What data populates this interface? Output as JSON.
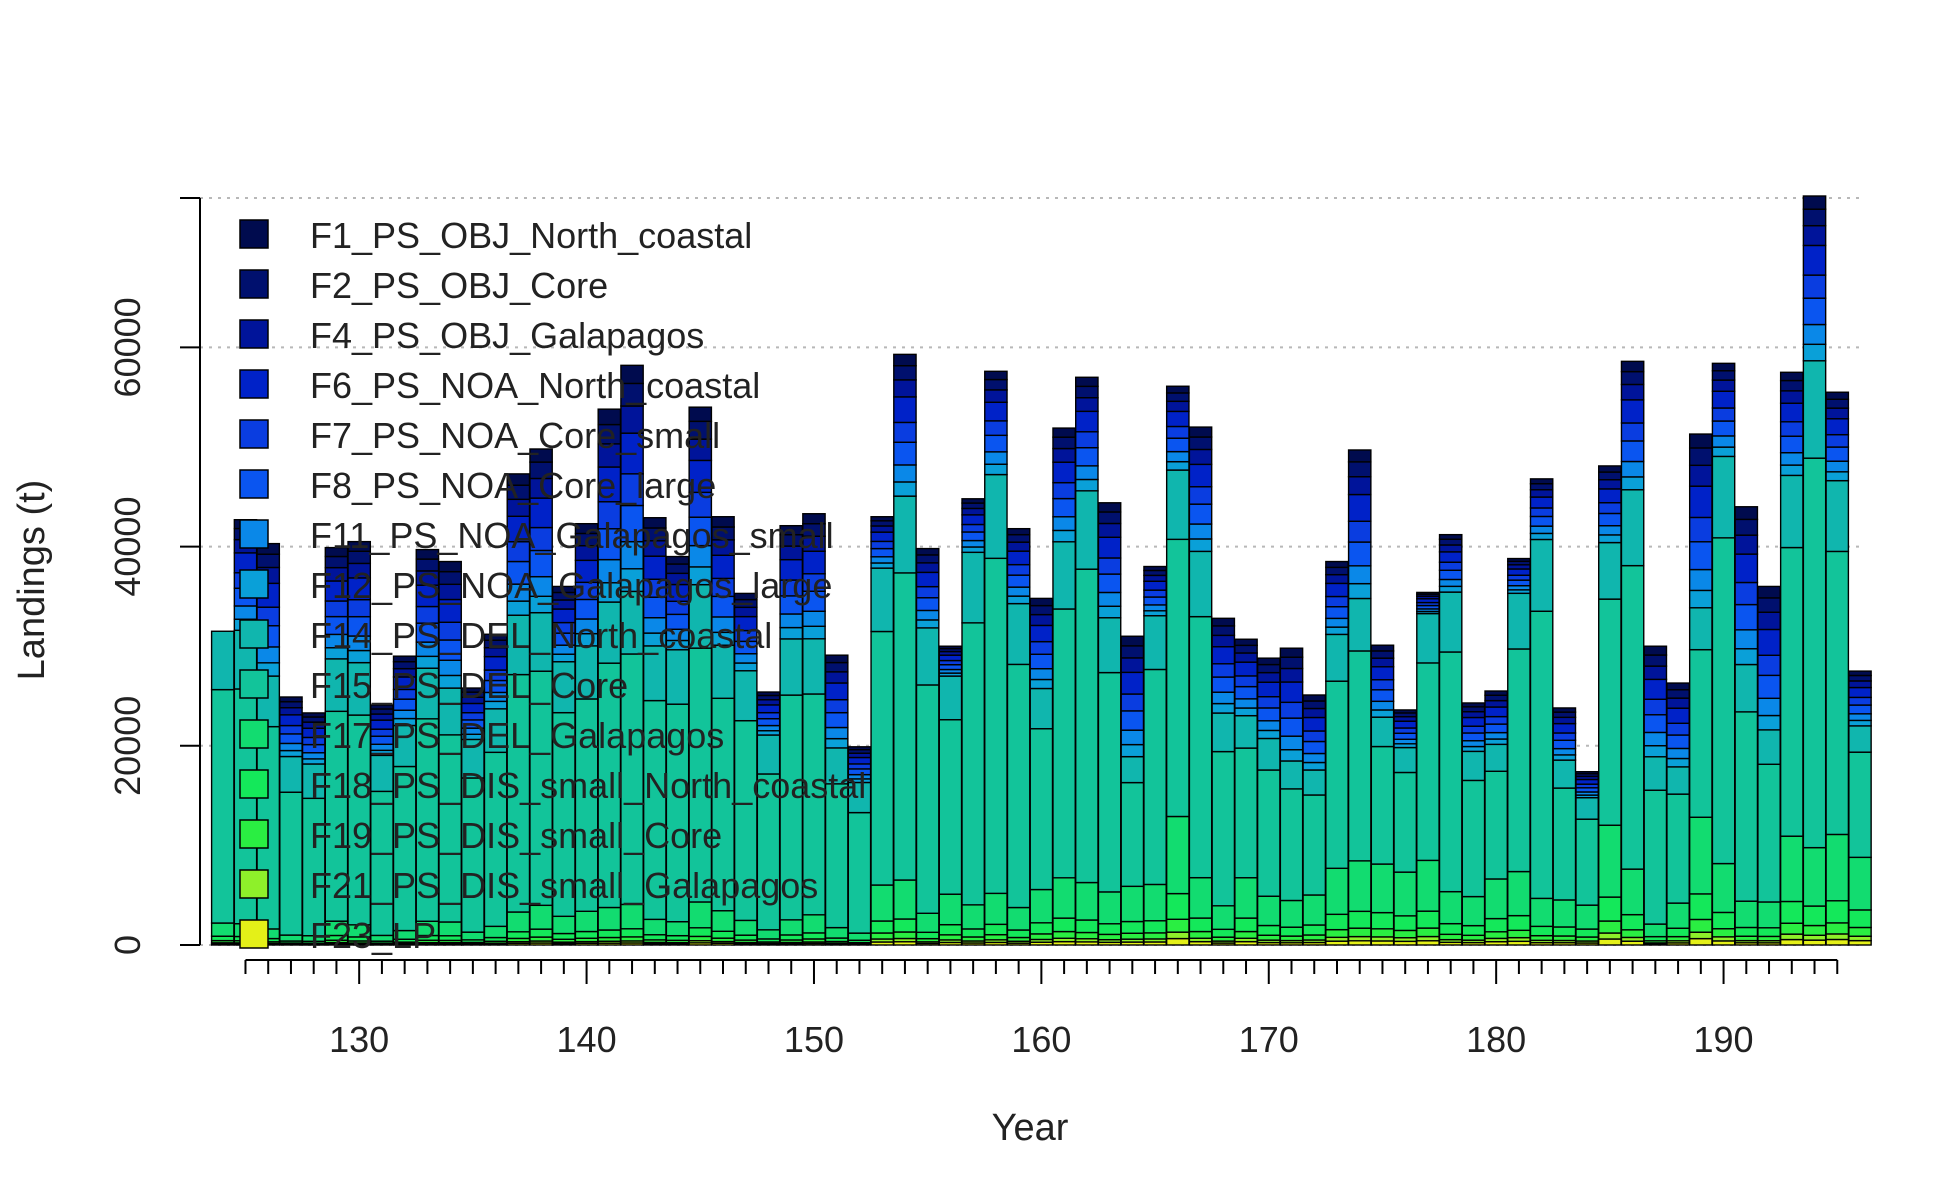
{
  "chart_data": {
    "type": "bar",
    "stacked": true,
    "xlabel": "Year",
    "ylabel": "Landings (t)",
    "xlim": [
      123,
      196
    ],
    "ylim": [
      0,
      75000
    ],
    "x_ticks": [
      130,
      140,
      150,
      160,
      170,
      180,
      190
    ],
    "y_ticks": [
      0,
      20000,
      40000,
      60000
    ],
    "grid": "horizontal dotted",
    "legend_position": "top-left",
    "x": [
      124,
      125,
      126,
      127,
      128,
      129,
      130,
      131,
      132,
      133,
      134,
      135,
      136,
      137,
      138,
      139,
      140,
      141,
      142,
      143,
      144,
      145,
      146,
      147,
      148,
      149,
      150,
      151,
      152,
      153,
      154,
      155,
      156,
      157,
      158,
      159,
      160,
      161,
      162,
      163,
      164,
      165,
      166,
      167,
      168,
      169,
      170,
      171,
      172,
      173,
      174,
      175,
      176,
      177,
      178,
      179,
      180,
      181,
      182,
      183,
      184,
      185,
      186,
      187,
      188,
      189,
      190,
      191,
      192,
      193,
      194,
      195,
      196
    ],
    "totals": [
      31500,
      42700,
      40300,
      24900,
      23300,
      39900,
      40500,
      24100,
      29000,
      39700,
      38500,
      25800,
      31200,
      47300,
      49800,
      36000,
      42300,
      53800,
      58200,
      42900,
      39000,
      54000,
      43000,
      35300,
      25400,
      42100,
      43300,
      29100,
      19900,
      43000,
      59300,
      39800,
      30000,
      44800,
      57600,
      41800,
      34800,
      51900,
      57000,
      44400,
      31000,
      38000,
      56100,
      52000,
      32800,
      30700,
      28800,
      29800,
      25100,
      38500,
      49700,
      30100,
      23600,
      35400,
      41200,
      24300,
      25500,
      38800,
      46800,
      23800,
      17400,
      48100,
      58600,
      30000,
      26300,
      51300,
      58400,
      44000,
      36000,
      57500,
      75200,
      55500,
      27500
    ],
    "top_share": [
      0,
      0.26,
      0.33,
      0.24,
      0.22,
      0.28,
      0.3,
      0.21,
      0.24,
      0.3,
      0.33,
      0.2,
      0.24,
      0.3,
      0.33,
      0.21,
      0.29,
      0.36,
      0.39,
      0.3,
      0.24,
      0.33,
      0.3,
      0.22,
      0.17,
      0.27,
      0.29,
      0.32,
      0.18,
      0.12,
      0.24,
      0.2,
      0.1,
      0.12,
      0.18,
      0.18,
      0.26,
      0.22,
      0.2,
      0.26,
      0.39,
      0.13,
      0.15,
      0.24,
      0.29,
      0.25,
      0.28,
      0.38,
      0.3,
      0.19,
      0.3,
      0.24,
      0.16,
      0.06,
      0.14,
      0.2,
      0.21,
      0.09,
      0.13,
      0.22,
      0.15,
      0.16,
      0.22,
      0.37,
      0.32,
      0.34,
      0.16,
      0.36,
      0.4,
      0.18,
      0.22,
      0.16,
      0.2
    ],
    "low_share": [
      0.07,
      0.05,
      0.04,
      0.04,
      0.04,
      0.06,
      0.05,
      0.04,
      0.05,
      0.06,
      0.06,
      0.05,
      0.06,
      0.07,
      0.08,
      0.08,
      0.08,
      0.07,
      0.07,
      0.06,
      0.06,
      0.08,
      0.08,
      0.07,
      0.06,
      0.06,
      0.07,
      0.06,
      0.06,
      0.14,
      0.11,
      0.08,
      0.17,
      0.09,
      0.09,
      0.09,
      0.16,
      0.13,
      0.11,
      0.12,
      0.19,
      0.16,
      0.23,
      0.13,
      0.12,
      0.22,
      0.17,
      0.15,
      0.2,
      0.2,
      0.17,
      0.27,
      0.31,
      0.24,
      0.13,
      0.2,
      0.26,
      0.19,
      0.1,
      0.19,
      0.23,
      0.25,
      0.13,
      0.07,
      0.16,
      0.25,
      0.14,
      0.1,
      0.12,
      0.19,
      0.13,
      0.2,
      0.32
    ],
    "series": [
      {
        "name": "F1_PS_OBJ_North_coastal",
        "color": "#000b4e"
      },
      {
        "name": "F2_PS_OBJ_Core",
        "color": "#00106e"
      },
      {
        "name": "F4_PS_OBJ_Galapagos",
        "color": "#00149a"
      },
      {
        "name": "F6_PS_NOA_North_coastal",
        "color": "#0022c8"
      },
      {
        "name": "F7_PS_NOA_Core_small",
        "color": "#0a3de0"
      },
      {
        "name": "F8_PS_NOA_Core_large",
        "color": "#0a55f0"
      },
      {
        "name": "F11_PS_NOA_Galapagos_small",
        "color": "#0a88e8"
      },
      {
        "name": "F12_PS_NOA_Galapagos_large",
        "color": "#0aa0d8"
      },
      {
        "name": "F14_PS_DEL_North_coastal",
        "color": "#10b6ae"
      },
      {
        "name": "F15_PS_DEL_Core",
        "color": "#12c49a"
      },
      {
        "name": "F17_PS_DEL_Galapagos",
        "color": "#12dc70"
      },
      {
        "name": "F18_PS_DIS_small_North_coastal",
        "color": "#14e85a"
      },
      {
        "name": "F19_PS_DIS_small_Core",
        "color": "#2aee42"
      },
      {
        "name": "F21_PS_DIS_small_Galapagos",
        "color": "#8ef02a"
      },
      {
        "name": "F23_LP",
        "color": "#e4f018"
      }
    ]
  }
}
